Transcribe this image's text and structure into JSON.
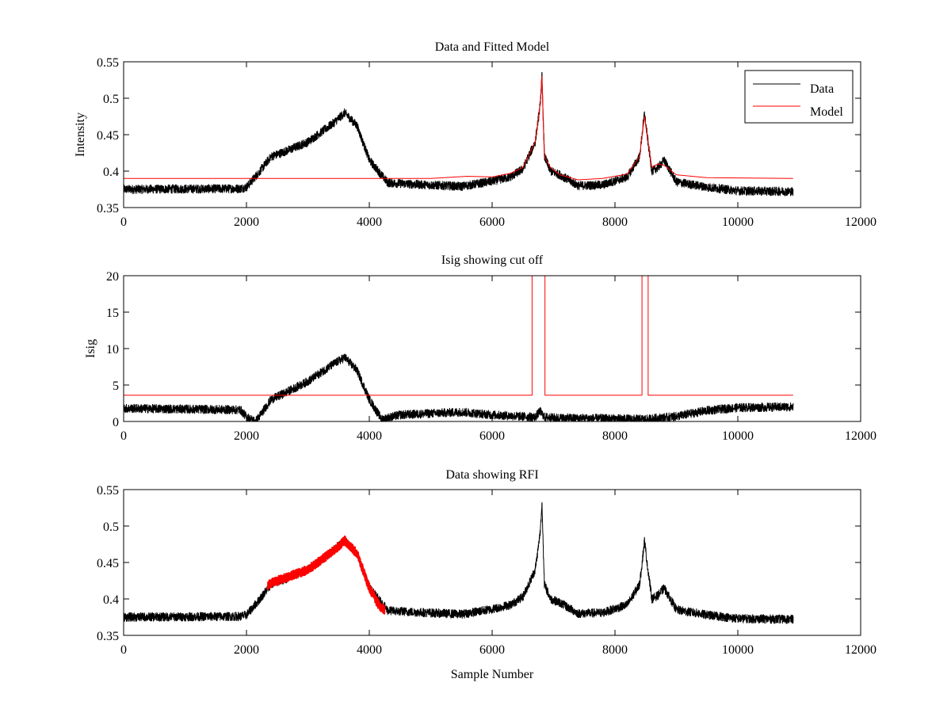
{
  "chart_data": [
    {
      "type": "line",
      "title": "Data and Fitted Model",
      "xlabel": "",
      "ylabel": "Intensity",
      "xlim": [
        0,
        12000
      ],
      "ylim": [
        0.35,
        0.55
      ],
      "xticks": [
        0,
        2000,
        4000,
        6000,
        8000,
        10000,
        12000
      ],
      "yticks": [
        0.35,
        0.4,
        0.45,
        0.5,
        0.55
      ],
      "ytick_labels": [
        "0.35",
        "0.4",
        "0.45",
        "0.5",
        "0.55"
      ],
      "grid": false,
      "legend": {
        "placement": "top-right",
        "entries": [
          "Data",
          "Model"
        ]
      },
      "series": [
        {
          "name": "Data",
          "color": "#000000",
          "noise": 0.006,
          "x": [
            0,
            1900,
            2000,
            2200,
            2400,
            2600,
            3000,
            3400,
            3600,
            3800,
            4000,
            4300,
            4700,
            5500,
            6000,
            6300,
            6500,
            6700,
            6780,
            6810,
            6850,
            6950,
            7100,
            7400,
            7800,
            8200,
            8400,
            8480,
            8520,
            8600,
            8700,
            8800,
            9000,
            9500,
            10000,
            10900
          ],
          "y": [
            0.375,
            0.376,
            0.378,
            0.398,
            0.42,
            0.426,
            0.44,
            0.465,
            0.48,
            0.462,
            0.415,
            0.384,
            0.382,
            0.379,
            0.386,
            0.392,
            0.403,
            0.44,
            0.49,
            0.53,
            0.42,
            0.4,
            0.395,
            0.38,
            0.381,
            0.392,
            0.42,
            0.48,
            0.45,
            0.4,
            0.405,
            0.415,
            0.385,
            0.378,
            0.373,
            0.372
          ]
        },
        {
          "name": "Model",
          "color": "#ff0000",
          "noise": 0,
          "x": [
            0,
            4300,
            5000,
            5600,
            6000,
            6300,
            6500,
            6700,
            6780,
            6810,
            6850,
            6950,
            7100,
            7400,
            7800,
            8200,
            8400,
            8480,
            8520,
            8600,
            8700,
            8800,
            9000,
            9500,
            10900
          ],
          "y": [
            0.39,
            0.39,
            0.39,
            0.393,
            0.392,
            0.397,
            0.405,
            0.44,
            0.49,
            0.53,
            0.42,
            0.405,
            0.395,
            0.388,
            0.39,
            0.396,
            0.42,
            0.475,
            0.45,
            0.405,
            0.41,
            0.408,
            0.395,
            0.391,
            0.39
          ]
        }
      ]
    },
    {
      "type": "line",
      "title": "Isig showing cut off",
      "xlabel": "",
      "ylabel": "Isig",
      "xlim": [
        0,
        12000
      ],
      "ylim": [
        0,
        20
      ],
      "xticks": [
        0,
        2000,
        4000,
        6000,
        8000,
        10000,
        12000
      ],
      "yticks": [
        0,
        5,
        10,
        15,
        20
      ],
      "ytick_labels": [
        "0",
        "5",
        "10",
        "15",
        "20"
      ],
      "grid": false,
      "series": [
        {
          "color": "#000000",
          "noise": 0.6,
          "x": [
            0,
            1900,
            2000,
            2150,
            2400,
            2600,
            3000,
            3400,
            3600,
            3800,
            4000,
            4200,
            4500,
            5500,
            6000,
            6700,
            6780,
            6850,
            7000,
            7800,
            8500,
            9000,
            9500,
            10000,
            10900
          ],
          "y": [
            1.8,
            1.6,
            0.6,
            0.0,
            3.0,
            3.8,
            5.5,
            7.8,
            8.8,
            7.0,
            3.0,
            0.3,
            0.9,
            1.3,
            0.9,
            0.6,
            1.4,
            0.6,
            0.5,
            0.4,
            0.3,
            0.7,
            1.5,
            1.9,
            2.0
          ]
        },
        {
          "color": "#ff0000",
          "noise": 0,
          "x": [
            0,
            6650,
            6650,
            6860,
            6860,
            8440,
            8440,
            8540,
            8540,
            10900
          ],
          "y": [
            3.6,
            3.6,
            25,
            25,
            3.6,
            3.6,
            25,
            25,
            3.6,
            3.6
          ]
        }
      ]
    },
    {
      "type": "line",
      "title": "Data showing RFI",
      "xlabel": "Sample Number",
      "ylabel": "",
      "xlim": [
        0,
        12000
      ],
      "ylim": [
        0.35,
        0.55
      ],
      "xticks": [
        0,
        2000,
        4000,
        6000,
        8000,
        10000,
        12000
      ],
      "yticks": [
        0.35,
        0.4,
        0.45,
        0.5,
        0.55
      ],
      "ytick_labels": [
        "0.35",
        "0.4",
        "0.45",
        "0.5",
        "0.55"
      ],
      "grid": false,
      "series": [
        {
          "color": "#000000",
          "noise": 0.006,
          "x": [
            0,
            1900,
            2000,
            2200,
            2400,
            2600,
            3000,
            3400,
            3600,
            3800,
            4000,
            4300,
            4700,
            5500,
            6000,
            6300,
            6500,
            6700,
            6780,
            6810,
            6850,
            6950,
            7100,
            7400,
            7800,
            8200,
            8400,
            8480,
            8520,
            8600,
            8700,
            8800,
            9000,
            9500,
            10000,
            10900
          ],
          "y": [
            0.375,
            0.376,
            0.378,
            0.398,
            0.42,
            0.426,
            0.44,
            0.465,
            0.48,
            0.462,
            0.415,
            0.384,
            0.382,
            0.379,
            0.386,
            0.392,
            0.403,
            0.44,
            0.49,
            0.53,
            0.42,
            0.4,
            0.395,
            0.38,
            0.381,
            0.392,
            0.42,
            0.48,
            0.45,
            0.4,
            0.405,
            0.415,
            0.385,
            0.378,
            0.373,
            0.372
          ]
        },
        {
          "color": "#ff0000",
          "noise": 0.006,
          "thick": true,
          "x": [
            2350,
            2400,
            2600,
            3000,
            3400,
            3600,
            3800,
            4000,
            4150,
            4250
          ],
          "y": [
            0.418,
            0.422,
            0.428,
            0.44,
            0.465,
            0.48,
            0.462,
            0.415,
            0.392,
            0.384
          ]
        }
      ]
    }
  ]
}
